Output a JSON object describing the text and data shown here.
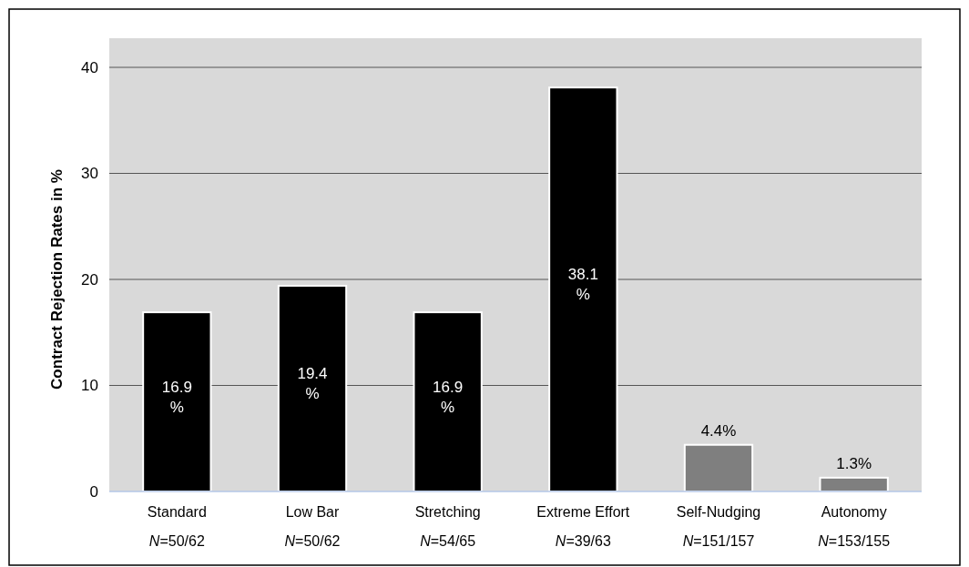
{
  "chart_data": {
    "type": "bar",
    "ylabel": "Contract Rejection Rates in %",
    "categories": [
      "Standard\nN=50/62",
      "Low Bar\nN=50/62",
      "Stretching\nN=54/65",
      "Extreme Effort\nN=39/63",
      "Self-Nudging\nN=151/157",
      "Autonomy\nN=153/155"
    ],
    "values": [
      16.9,
      19.4,
      16.9,
      38.1,
      4.4,
      1.3
    ],
    "colors": [
      "#000000",
      "#000000",
      "#000000",
      "#000000",
      "#7f7f7f",
      "#7f7f7f"
    ],
    "value_labels": [
      "16.9 %",
      "19.4 %",
      "16.9 %",
      "38.1 %",
      "4.4%",
      "1.3%"
    ],
    "ylim": [
      0,
      40
    ],
    "yticks": [
      0,
      10,
      20,
      30,
      40
    ],
    "grid": "y"
  }
}
